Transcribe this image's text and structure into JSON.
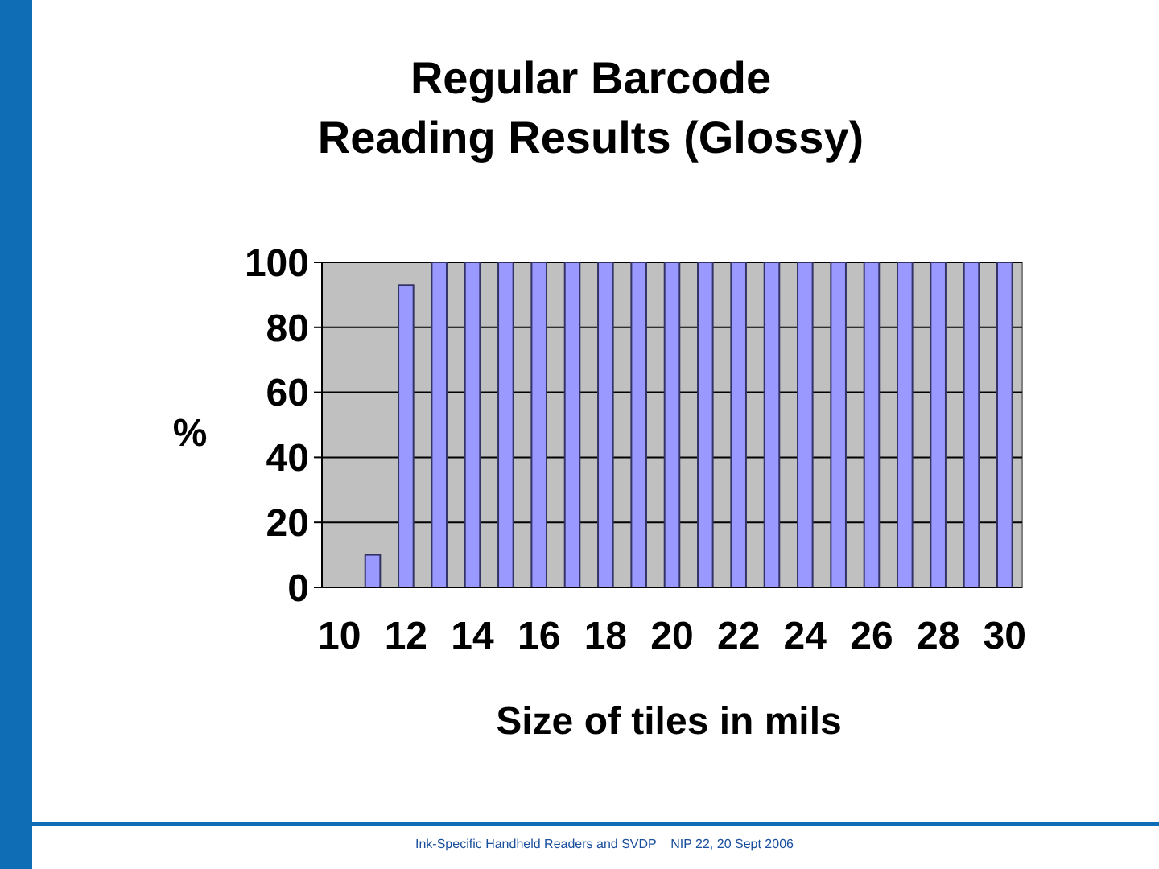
{
  "chart_data": {
    "type": "bar",
    "title": "Regular Barcode\nReading Results (Glossy)",
    "xlabel": "Size of tiles in mils",
    "ylabel": "%",
    "categories": [
      "10",
      null,
      "12",
      null,
      "14",
      null,
      "16",
      null,
      "18",
      null,
      "20",
      null,
      "22",
      null,
      "24",
      null,
      "26",
      null,
      "28",
      null,
      "30"
    ],
    "values": [
      0,
      10,
      93,
      100,
      100,
      100,
      100,
      100,
      100,
      100,
      100,
      100,
      100,
      100,
      100,
      100,
      100,
      100,
      100,
      100,
      100
    ],
    "color": "#9999ff",
    "ylim": [
      0,
      100
    ],
    "yticks": [
      0,
      20,
      40,
      60,
      80,
      100
    ],
    "grid": "y",
    "annotations": [
      "Ink-Specific Handheld Readers and SVDP    NIP 22, 20 Sept 2006"
    ]
  }
}
